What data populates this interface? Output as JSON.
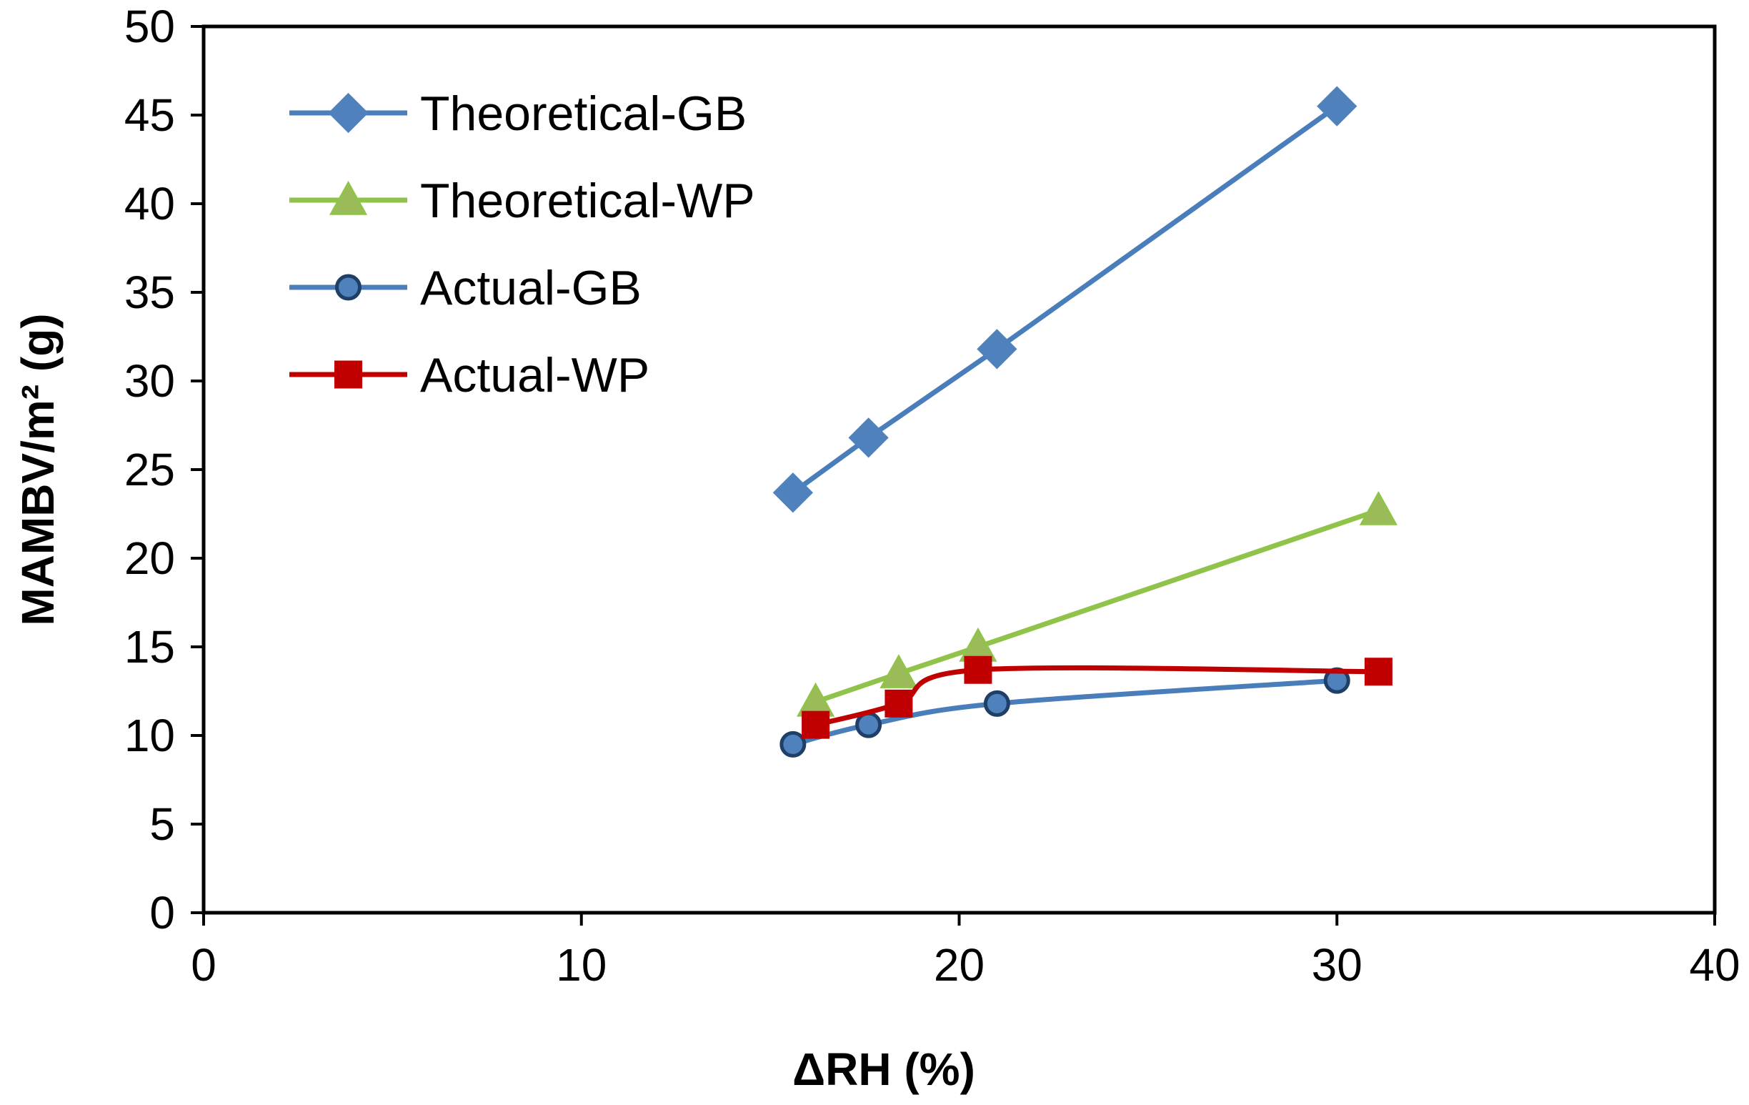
{
  "chart_data": {
    "type": "line",
    "title": "",
    "xlabel": "ΔRH (%)",
    "ylabel": "MAMBV/m² (g)",
    "xlim": [
      0,
      40
    ],
    "ylim": [
      0,
      50
    ],
    "xticks": [
      0,
      10,
      20,
      30,
      40
    ],
    "yticks": [
      0,
      5,
      10,
      15,
      20,
      25,
      30,
      35,
      40,
      45,
      50
    ],
    "grid": false,
    "legend_position": "top-left",
    "series": [
      {
        "name": "Theoretical-GB",
        "color": "#4a7ebb",
        "marker_fill": "#4f81bd",
        "marker_stroke": "#4f81bd",
        "marker": "diamond",
        "smooth": false,
        "points": [
          [
            15.6,
            23.7
          ],
          [
            17.6,
            26.8
          ],
          [
            21.0,
            31.8
          ],
          [
            30.0,
            45.5
          ]
        ]
      },
      {
        "name": "Theoretical-WP",
        "color": "#8fc34a",
        "marker_fill": "#9bbb59",
        "marker_stroke": "#8fc34a",
        "marker": "triangle",
        "smooth": false,
        "points": [
          [
            16.2,
            11.9
          ],
          [
            18.4,
            13.5
          ],
          [
            20.5,
            15.0
          ],
          [
            31.1,
            22.7
          ]
        ]
      },
      {
        "name": "Actual-GB",
        "color": "#4a7ebb",
        "marker_fill": "#4f81bd",
        "marker_stroke": "#1f3f66",
        "marker": "circle",
        "smooth": true,
        "points": [
          [
            15.6,
            9.5
          ],
          [
            17.6,
            10.6
          ],
          [
            21.0,
            11.8
          ],
          [
            30.0,
            13.1
          ]
        ]
      },
      {
        "name": "Actual-WP",
        "color": "#c00000",
        "marker_fill": "#c00000",
        "marker_stroke": "#c00000",
        "marker": "square",
        "smooth": true,
        "points": [
          [
            16.2,
            10.6
          ],
          [
            18.4,
            11.8
          ],
          [
            20.5,
            13.7
          ],
          [
            31.1,
            13.6
          ]
        ]
      }
    ]
  }
}
